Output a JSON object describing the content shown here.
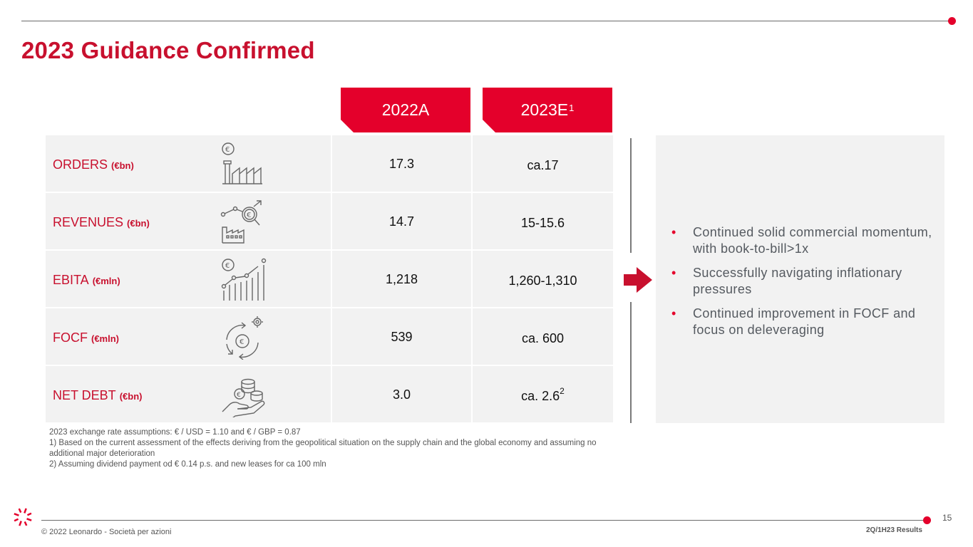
{
  "title": "2023 Guidance Confirmed",
  "columns": [
    {
      "label": "2022A",
      "sup": ""
    },
    {
      "label": "2023E",
      "sup": "1"
    }
  ],
  "rows": [
    {
      "name": "ORDERS",
      "unit": "(€bn)",
      "icon": "orders-icon",
      "v2022": "17.3",
      "v2023": "ca.17",
      "v2023_sup": ""
    },
    {
      "name": "REVENUES",
      "unit": "(€bn)",
      "icon": "revenues-icon",
      "v2022": "14.7",
      "v2023": "15-15.6",
      "v2023_sup": ""
    },
    {
      "name": "EBITA",
      "unit": "(€mln)",
      "icon": "ebita-icon",
      "v2022": "1,218",
      "v2023": "1,260-1,310",
      "v2023_sup": ""
    },
    {
      "name": "FOCF",
      "unit": "(€mln)",
      "icon": "focf-icon",
      "v2022": "539",
      "v2023": "ca. 600",
      "v2023_sup": ""
    },
    {
      "name": "NET DEBT",
      "unit": "(€bn)",
      "icon": "net-debt-icon",
      "v2022": "3.0",
      "v2023": "ca. 2.6",
      "v2023_sup": "2"
    }
  ],
  "bullets": [
    "Continued solid commercial momentum, with book-to-bill>1x",
    "Successfully navigating inflationary pressures",
    "Continued improvement in FOCF and focus on deleveraging"
  ],
  "notes": [
    "2023 exchange rate assumptions: € / USD = 1.10 and € / GBP = 0.87",
    "1) Based on the current assessment of the effects deriving from the geopolitical situation on the supply chain and the global economy and assuming no additional major deterioration",
    "2) Assuming dividend payment od € 0.14 p.s. and new leases for ca 100 mln"
  ],
  "footer": {
    "page_number": "15",
    "copyright": "© 2022 Leonardo - Società per azioni",
    "tag": "2Q/1H23 Results"
  },
  "colors": {
    "accent": "#e4002b",
    "title": "#c8102e",
    "cell_bg": "#f2f2f2"
  }
}
